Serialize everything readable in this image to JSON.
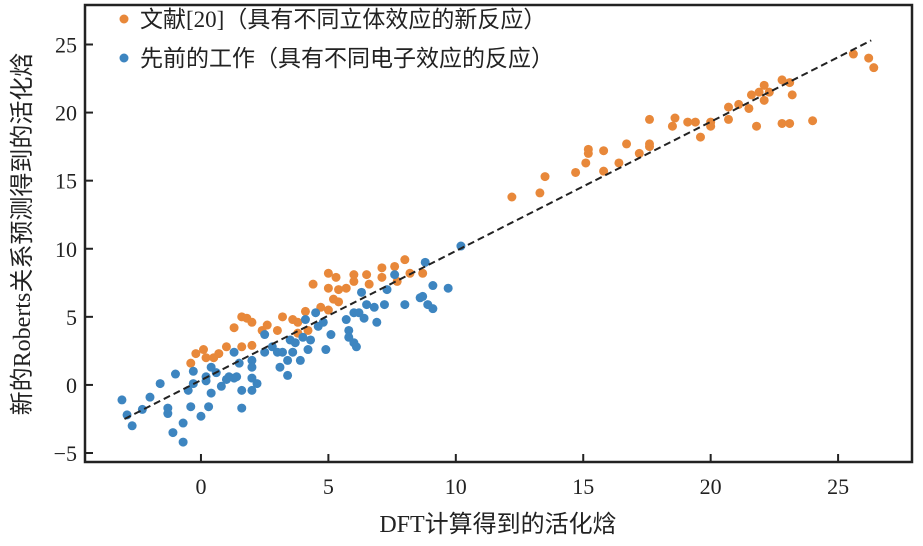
{
  "chart_data": {
    "type": "scatter",
    "title": "",
    "xlabel": "DFT计算得到的活化焓",
    "ylabel": "新的Roberts关系预测得到的活化焓",
    "xlim": [
      -4.55,
      27.9
    ],
    "ylim": [
      -5.66,
      27.9
    ],
    "xticks": [
      0,
      5,
      10,
      15,
      20,
      25
    ],
    "yticks": [
      -5,
      0,
      5,
      10,
      15,
      20,
      25
    ],
    "xtick_labels": [
      "0",
      "5",
      "10",
      "15",
      "20",
      "25"
    ],
    "ytick_labels": [
      "−5",
      "0",
      "5",
      "10",
      "15",
      "20",
      "25"
    ],
    "grid": false,
    "legend_position": "top-left",
    "fit_line": {
      "style": "dashed",
      "color": "#222222",
      "x": [
        -3.0,
        26.3
      ],
      "y": [
        -2.5,
        25.3
      ]
    },
    "series": [
      {
        "name": "文献[20]（具有不同立体效应的新反应）",
        "color": "#e8883a",
        "points": [
          [
            -0.4,
            1.6
          ],
          [
            -0.2,
            2.3
          ],
          [
            0.1,
            2.6
          ],
          [
            0.2,
            2.0
          ],
          [
            0.5,
            2.0
          ],
          [
            0.7,
            2.3
          ],
          [
            1.0,
            2.8
          ],
          [
            1.3,
            4.2
          ],
          [
            1.6,
            5.0
          ],
          [
            1.8,
            4.9
          ],
          [
            2.0,
            4.6
          ],
          [
            1.6,
            2.8
          ],
          [
            2.0,
            2.9
          ],
          [
            2.4,
            4.0
          ],
          [
            2.6,
            4.4
          ],
          [
            3.0,
            4.0
          ],
          [
            3.2,
            5.0
          ],
          [
            3.6,
            4.8
          ],
          [
            3.8,
            4.6
          ],
          [
            4.1,
            5.4
          ],
          [
            4.2,
            4.0
          ],
          [
            4.4,
            7.4
          ],
          [
            5.0,
            8.2
          ],
          [
            5.0,
            7.1
          ],
          [
            5.3,
            7.9
          ],
          [
            5.4,
            7.0
          ],
          [
            5.7,
            7.1
          ],
          [
            6.0,
            8.1
          ],
          [
            6.0,
            7.6
          ],
          [
            5.2,
            6.3
          ],
          [
            5.0,
            5.5
          ],
          [
            5.4,
            6.1
          ],
          [
            6.5,
            8.1
          ],
          [
            6.6,
            7.4
          ],
          [
            7.1,
            8.6
          ],
          [
            7.1,
            7.9
          ],
          [
            7.6,
            8.7
          ],
          [
            8.0,
            9.2
          ],
          [
            8.2,
            8.2
          ],
          [
            8.7,
            8.2
          ],
          [
            7.7,
            7.6
          ],
          [
            3.8,
            3.8
          ],
          [
            4.7,
            5.7
          ],
          [
            12.2,
            13.8
          ],
          [
            13.3,
            14.1
          ],
          [
            13.5,
            15.3
          ],
          [
            14.7,
            15.6
          ],
          [
            15.2,
            17.3
          ],
          [
            15.2,
            17.0
          ],
          [
            15.1,
            16.3
          ],
          [
            15.8,
            17.2
          ],
          [
            15.8,
            15.7
          ],
          [
            16.4,
            16.3
          ],
          [
            16.7,
            17.7
          ],
          [
            17.2,
            17.0
          ],
          [
            17.6,
            17.7
          ],
          [
            17.6,
            17.5
          ],
          [
            17.6,
            19.5
          ],
          [
            18.5,
            19.0
          ],
          [
            18.6,
            19.6
          ],
          [
            19.1,
            19.3
          ],
          [
            19.4,
            19.3
          ],
          [
            19.6,
            18.2
          ],
          [
            20.0,
            19.3
          ],
          [
            20.0,
            19.0
          ],
          [
            20.7,
            20.4
          ],
          [
            20.7,
            19.5
          ],
          [
            21.1,
            20.6
          ],
          [
            21.5,
            20.3
          ],
          [
            21.6,
            21.3
          ],
          [
            21.8,
            19.0
          ],
          [
            21.9,
            21.5
          ],
          [
            22.1,
            22.0
          ],
          [
            22.1,
            20.9
          ],
          [
            22.3,
            21.5
          ],
          [
            22.8,
            22.4
          ],
          [
            23.1,
            22.2
          ],
          [
            23.2,
            21.3
          ],
          [
            22.8,
            19.2
          ],
          [
            23.1,
            19.2
          ],
          [
            24.0,
            19.4
          ],
          [
            25.6,
            24.3
          ],
          [
            26.2,
            24.0
          ],
          [
            26.4,
            23.3
          ]
        ]
      },
      {
        "name": "先前的工作（具有不同电子效应的反应）",
        "color": "#3d85c0",
        "points": [
          [
            -3.1,
            -1.1
          ],
          [
            -2.9,
            -2.2
          ],
          [
            -2.7,
            -3.0
          ],
          [
            -2.3,
            -1.8
          ],
          [
            -2.0,
            -0.9
          ],
          [
            -1.6,
            0.1
          ],
          [
            -1.3,
            -1.7
          ],
          [
            -1.3,
            -2.1
          ],
          [
            -1.1,
            -3.5
          ],
          [
            -1.0,
            0.8
          ],
          [
            -0.7,
            -2.8
          ],
          [
            -0.7,
            -4.2
          ],
          [
            -0.5,
            -0.4
          ],
          [
            -0.4,
            -1.6
          ],
          [
            -0.3,
            0.1
          ],
          [
            -0.3,
            1.0
          ],
          [
            0.0,
            -2.3
          ],
          [
            0.2,
            0.6
          ],
          [
            0.3,
            -1.6
          ],
          [
            0.4,
            -0.6
          ],
          [
            0.2,
            0.3
          ],
          [
            0.4,
            1.3
          ],
          [
            0.6,
            0.9
          ],
          [
            0.8,
            -0.1
          ],
          [
            1.0,
            0.4
          ],
          [
            1.1,
            0.6
          ],
          [
            1.3,
            0.5
          ],
          [
            1.4,
            0.6
          ],
          [
            1.3,
            2.4
          ],
          [
            1.5,
            1.6
          ],
          [
            1.6,
            -0.4
          ],
          [
            1.6,
            -1.7
          ],
          [
            2.0,
            1.8
          ],
          [
            2.0,
            1.3
          ],
          [
            2.0,
            0.5
          ],
          [
            2.2,
            0.1
          ],
          [
            2.0,
            -0.4
          ],
          [
            2.5,
            3.7
          ],
          [
            2.5,
            2.4
          ],
          [
            2.8,
            2.8
          ],
          [
            3.0,
            2.4
          ],
          [
            3.1,
            1.3
          ],
          [
            3.2,
            2.4
          ],
          [
            3.4,
            1.8
          ],
          [
            3.4,
            0.7
          ],
          [
            3.5,
            3.3
          ],
          [
            3.6,
            2.4
          ],
          [
            3.7,
            3.1
          ],
          [
            3.9,
            1.8
          ],
          [
            4.0,
            3.5
          ],
          [
            4.1,
            4.8
          ],
          [
            4.2,
            2.6
          ],
          [
            4.3,
            3.3
          ],
          [
            4.5,
            5.3
          ],
          [
            4.6,
            4.3
          ],
          [
            4.8,
            4.6
          ],
          [
            4.9,
            2.6
          ],
          [
            5.1,
            3.7
          ],
          [
            5.7,
            4.8
          ],
          [
            5.8,
            4.0
          ],
          [
            5.8,
            3.5
          ],
          [
            6.0,
            3.1
          ],
          [
            6.1,
            2.8
          ],
          [
            6.0,
            5.3
          ],
          [
            6.2,
            5.3
          ],
          [
            6.3,
            6.8
          ],
          [
            6.4,
            4.9
          ],
          [
            6.5,
            5.9
          ],
          [
            6.8,
            5.7
          ],
          [
            6.9,
            4.6
          ],
          [
            7.2,
            5.9
          ],
          [
            7.3,
            7.0
          ],
          [
            7.6,
            8.1
          ],
          [
            8.0,
            5.9
          ],
          [
            8.6,
            6.4
          ],
          [
            8.7,
            6.5
          ],
          [
            8.8,
            9.0
          ],
          [
            8.9,
            5.9
          ],
          [
            9.1,
            5.6
          ],
          [
            9.1,
            7.3
          ],
          [
            9.7,
            7.1
          ],
          [
            10.2,
            10.2
          ]
        ]
      }
    ]
  }
}
